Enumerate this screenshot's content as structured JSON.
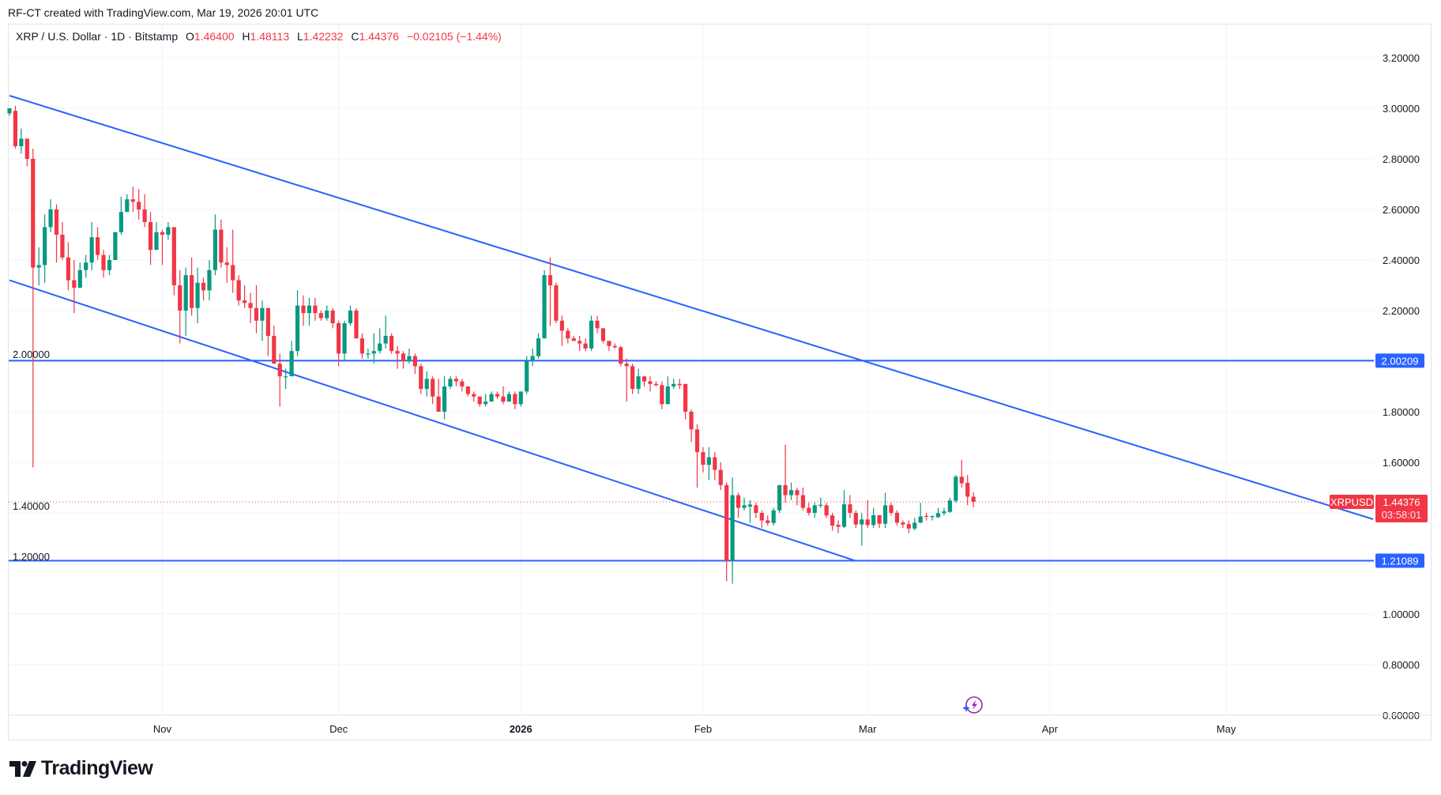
{
  "header": {
    "credit": "RF-CT created with TradingView.com, Mar 19, 2026 20:01 UTC"
  },
  "legend": {
    "symbol": "XRP / U.S. Dollar · 1D · Bitstamp",
    "o_label": "O",
    "o_value": "1.46400",
    "h_label": "H",
    "h_value": "1.48113",
    "l_label": "L",
    "l_value": "1.42232",
    "c_label": "C",
    "c_value": "1.44376",
    "change": "−0.02105 (−1.44%)"
  },
  "price_axis": {
    "ticks": [
      "3.20000",
      "3.00000",
      "2.80000",
      "2.60000",
      "2.40000",
      "2.20000",
      "2.00000",
      "1.80000",
      "1.60000",
      "1.40000",
      "1.20000",
      "1.00000",
      "0.80000",
      "0.60000"
    ],
    "level_labels": [
      "2.00209",
      "1.21089"
    ],
    "current_symbol": "XRPUSD",
    "current_price": "1.44376",
    "countdown": "03:58:01"
  },
  "time_axis": {
    "ticks": [
      {
        "label": "Nov",
        "date": "2025-11-01",
        "bold": false
      },
      {
        "label": "Dec",
        "date": "2025-12-01",
        "bold": false
      },
      {
        "label": "2026",
        "date": "2026-01-01",
        "bold": true
      },
      {
        "label": "Feb",
        "date": "2026-02-01",
        "bold": false
      },
      {
        "label": "Mar",
        "date": "2026-03-01",
        "bold": false
      },
      {
        "label": "Apr",
        "date": "2026-04-01",
        "bold": false
      },
      {
        "label": "May",
        "date": "2026-05-01",
        "bold": false
      }
    ]
  },
  "logo": {
    "text": "TradingView"
  },
  "colors": {
    "up": "#089981",
    "down": "#F23645",
    "drawing": "#2962FF",
    "grid": "#f0f3fa"
  },
  "chart_data": {
    "type": "candlestick",
    "interval": "1D",
    "ylim": [
      0.6,
      3.2
    ],
    "grid": true,
    "first_date": "2025-10-06",
    "last_date": "2026-03-19",
    "ohlc": [
      [
        2.98,
        3.0,
        2.97,
        3.0
      ],
      [
        2.99,
        3.01,
        2.84,
        2.85
      ],
      [
        2.85,
        2.92,
        2.82,
        2.88
      ],
      [
        2.88,
        2.88,
        2.77,
        2.8
      ],
      [
        2.8,
        2.84,
        1.58,
        2.37
      ],
      [
        2.37,
        2.45,
        2.3,
        2.38
      ],
      [
        2.38,
        2.58,
        2.31,
        2.53
      ],
      [
        2.53,
        2.64,
        2.51,
        2.6
      ],
      [
        2.6,
        2.62,
        2.39,
        2.5
      ],
      [
        2.5,
        2.55,
        2.4,
        2.41
      ],
      [
        2.41,
        2.47,
        2.28,
        2.32
      ],
      [
        2.32,
        2.4,
        2.19,
        2.29
      ],
      [
        2.29,
        2.39,
        2.29,
        2.36
      ],
      [
        2.36,
        2.42,
        2.33,
        2.39
      ],
      [
        2.39,
        2.55,
        2.36,
        2.49
      ],
      [
        2.49,
        2.53,
        2.4,
        2.42
      ],
      [
        2.42,
        2.44,
        2.33,
        2.36
      ],
      [
        2.36,
        2.42,
        2.34,
        2.4
      ],
      [
        2.4,
        2.51,
        2.4,
        2.51
      ],
      [
        2.51,
        2.65,
        2.5,
        2.59
      ],
      [
        2.59,
        2.66,
        2.59,
        2.64
      ],
      [
        2.64,
        2.69,
        2.59,
        2.63
      ],
      [
        2.63,
        2.68,
        2.56,
        2.6
      ],
      [
        2.6,
        2.66,
        2.53,
        2.55
      ],
      [
        2.55,
        2.59,
        2.38,
        2.44
      ],
      [
        2.44,
        2.55,
        2.44,
        2.51
      ],
      [
        2.51,
        2.52,
        2.38,
        2.5
      ],
      [
        2.5,
        2.55,
        2.48,
        2.53
      ],
      [
        2.53,
        2.53,
        2.26,
        2.3
      ],
      [
        2.3,
        2.36,
        2.07,
        2.2
      ],
      [
        2.2,
        2.37,
        2.1,
        2.34
      ],
      [
        2.34,
        2.41,
        2.18,
        2.21
      ],
      [
        2.21,
        2.37,
        2.15,
        2.31
      ],
      [
        2.31,
        2.33,
        2.24,
        2.28
      ],
      [
        2.28,
        2.4,
        2.24,
        2.36
      ],
      [
        2.36,
        2.58,
        2.34,
        2.52
      ],
      [
        2.52,
        2.56,
        2.37,
        2.39
      ],
      [
        2.39,
        2.45,
        2.31,
        2.38
      ],
      [
        2.38,
        2.52,
        2.27,
        2.32
      ],
      [
        2.32,
        2.34,
        2.22,
        2.24
      ],
      [
        2.24,
        2.3,
        2.21,
        2.23
      ],
      [
        2.23,
        2.27,
        2.15,
        2.21
      ],
      [
        2.21,
        2.3,
        2.11,
        2.16
      ],
      [
        2.16,
        2.24,
        2.08,
        2.21
      ],
      [
        2.21,
        2.21,
        2.02,
        2.1
      ],
      [
        2.1,
        2.14,
        1.99,
        1.99
      ],
      [
        1.99,
        2.03,
        1.82,
        1.94
      ],
      [
        1.94,
        1.97,
        1.89,
        1.94
      ],
      [
        1.94,
        2.08,
        1.94,
        2.04
      ],
      [
        2.04,
        2.28,
        2.02,
        2.22
      ],
      [
        2.22,
        2.26,
        2.14,
        2.19
      ],
      [
        2.19,
        2.25,
        2.14,
        2.22
      ],
      [
        2.22,
        2.25,
        2.16,
        2.19
      ],
      [
        2.19,
        2.2,
        2.16,
        2.17
      ],
      [
        2.17,
        2.22,
        2.16,
        2.2
      ],
      [
        2.2,
        2.21,
        2.13,
        2.15
      ],
      [
        2.15,
        2.16,
        1.98,
        2.03
      ],
      [
        2.03,
        2.16,
        2.0,
        2.15
      ],
      [
        2.15,
        2.22,
        2.14,
        2.2
      ],
      [
        2.2,
        2.21,
        2.09,
        2.09
      ],
      [
        2.09,
        2.11,
        2.01,
        2.03
      ],
      [
        2.03,
        2.05,
        2.01,
        2.03
      ],
      [
        2.03,
        2.11,
        1.99,
        2.04
      ],
      [
        2.04,
        2.13,
        2.03,
        2.07
      ],
      [
        2.07,
        2.18,
        2.05,
        2.1
      ],
      [
        2.1,
        2.11,
        2.03,
        2.04
      ],
      [
        2.04,
        2.06,
        1.97,
        2.03
      ],
      [
        2.03,
        2.04,
        1.97,
        2.0
      ],
      [
        2.0,
        2.05,
        1.99,
        2.02
      ],
      [
        2.02,
        2.03,
        1.95,
        1.98
      ],
      [
        1.98,
        1.99,
        1.87,
        1.89
      ],
      [
        1.89,
        1.96,
        1.86,
        1.93
      ],
      [
        1.93,
        1.94,
        1.83,
        1.86
      ],
      [
        1.86,
        1.93,
        1.8,
        1.8
      ],
      [
        1.8,
        1.94,
        1.77,
        1.9
      ],
      [
        1.9,
        1.94,
        1.89,
        1.93
      ],
      [
        1.93,
        1.94,
        1.9,
        1.92
      ],
      [
        1.92,
        1.93,
        1.88,
        1.9
      ],
      [
        1.9,
        1.9,
        1.86,
        1.87
      ],
      [
        1.87,
        1.88,
        1.84,
        1.86
      ],
      [
        1.86,
        1.86,
        1.82,
        1.83
      ],
      [
        1.83,
        1.87,
        1.82,
        1.84
      ],
      [
        1.84,
        1.88,
        1.84,
        1.87
      ],
      [
        1.87,
        1.88,
        1.85,
        1.86
      ],
      [
        1.86,
        1.9,
        1.83,
        1.84
      ],
      [
        1.84,
        1.88,
        1.84,
        1.87
      ],
      [
        1.87,
        1.88,
        1.81,
        1.83
      ],
      [
        1.83,
        1.88,
        1.82,
        1.88
      ],
      [
        1.88,
        2.02,
        1.87,
        2.0
      ],
      [
        2.0,
        2.05,
        1.98,
        2.02
      ],
      [
        2.02,
        2.11,
        2.01,
        2.09
      ],
      [
        2.09,
        2.36,
        2.09,
        2.34
      ],
      [
        2.34,
        2.41,
        2.14,
        2.3
      ],
      [
        2.3,
        2.31,
        2.15,
        2.16
      ],
      [
        2.16,
        2.18,
        2.06,
        2.12
      ],
      [
        2.12,
        2.13,
        2.07,
        2.09
      ],
      [
        2.09,
        2.1,
        2.08,
        2.08
      ],
      [
        2.08,
        2.1,
        2.04,
        2.07
      ],
      [
        2.07,
        2.09,
        2.04,
        2.05
      ],
      [
        2.05,
        2.18,
        2.04,
        2.16
      ],
      [
        2.16,
        2.18,
        2.11,
        2.13
      ],
      [
        2.13,
        2.13,
        2.07,
        2.08
      ],
      [
        2.08,
        2.08,
        2.04,
        2.06
      ],
      [
        2.06,
        2.07,
        2.05,
        2.055
      ],
      [
        2.055,
        2.06,
        1.98,
        1.99
      ],
      [
        1.99,
        2.01,
        1.84,
        1.98
      ],
      [
        1.98,
        1.99,
        1.87,
        1.89
      ],
      [
        1.89,
        1.97,
        1.87,
        1.94
      ],
      [
        1.94,
        1.94,
        1.9,
        1.92
      ],
      [
        1.92,
        1.94,
        1.88,
        1.91
      ],
      [
        1.91,
        1.92,
        1.9,
        1.905
      ],
      [
        1.905,
        1.92,
        1.81,
        1.83
      ],
      [
        1.83,
        1.94,
        1.83,
        1.9
      ],
      [
        1.9,
        1.93,
        1.89,
        1.91
      ],
      [
        1.91,
        1.93,
        1.89,
        1.905
      ],
      [
        1.91,
        1.91,
        1.77,
        1.8
      ],
      [
        1.8,
        1.81,
        1.68,
        1.73
      ],
      [
        1.73,
        1.75,
        1.5,
        1.64
      ],
      [
        1.64,
        1.66,
        1.56,
        1.59
      ],
      [
        1.59,
        1.66,
        1.53,
        1.62
      ],
      [
        1.62,
        1.64,
        1.53,
        1.57
      ],
      [
        1.57,
        1.6,
        1.49,
        1.51
      ],
      [
        1.51,
        1.52,
        1.13,
        1.21
      ],
      [
        1.21,
        1.54,
        1.12,
        1.47
      ],
      [
        1.47,
        1.48,
        1.38,
        1.42
      ],
      [
        1.42,
        1.46,
        1.41,
        1.43
      ],
      [
        1.425,
        1.45,
        1.36,
        1.433
      ],
      [
        1.43,
        1.44,
        1.38,
        1.4
      ],
      [
        1.4,
        1.41,
        1.34,
        1.37
      ],
      [
        1.37,
        1.39,
        1.35,
        1.36
      ],
      [
        1.36,
        1.42,
        1.35,
        1.41
      ],
      [
        1.41,
        1.51,
        1.4,
        1.51
      ],
      [
        1.51,
        1.67,
        1.44,
        1.47
      ],
      [
        1.47,
        1.52,
        1.45,
        1.49
      ],
      [
        1.49,
        1.5,
        1.43,
        1.47
      ],
      [
        1.47,
        1.5,
        1.41,
        1.42
      ],
      [
        1.42,
        1.44,
        1.39,
        1.4
      ],
      [
        1.4,
        1.44,
        1.38,
        1.43
      ],
      [
        1.428,
        1.46,
        1.42,
        1.432
      ],
      [
        1.43,
        1.44,
        1.38,
        1.39
      ],
      [
        1.39,
        1.4,
        1.33,
        1.35
      ],
      [
        1.353,
        1.37,
        1.32,
        1.345
      ],
      [
        1.345,
        1.49,
        1.34,
        1.434
      ],
      [
        1.434,
        1.47,
        1.38,
        1.4
      ],
      [
        1.4,
        1.41,
        1.34,
        1.354
      ],
      [
        1.354,
        1.4,
        1.27,
        1.374
      ],
      [
        1.374,
        1.45,
        1.34,
        1.352
      ],
      [
        1.352,
        1.42,
        1.34,
        1.391
      ],
      [
        1.391,
        1.39,
        1.34,
        1.357
      ],
      [
        1.357,
        1.48,
        1.34,
        1.43
      ],
      [
        1.43,
        1.44,
        1.39,
        1.4
      ],
      [
        1.4,
        1.41,
        1.35,
        1.361
      ],
      [
        1.362,
        1.37,
        1.34,
        1.354
      ],
      [
        1.356,
        1.37,
        1.32,
        1.338
      ],
      [
        1.338,
        1.38,
        1.33,
        1.361
      ],
      [
        1.361,
        1.44,
        1.36,
        1.386
      ],
      [
        1.388,
        1.4,
        1.37,
        1.385
      ],
      [
        1.385,
        1.39,
        1.37,
        1.387
      ],
      [
        1.383,
        1.42,
        1.38,
        1.399
      ],
      [
        1.399,
        1.42,
        1.39,
        1.406
      ],
      [
        1.404,
        1.46,
        1.4,
        1.449
      ],
      [
        1.448,
        1.55,
        1.44,
        1.543
      ],
      [
        1.543,
        1.61,
        1.5,
        1.517
      ],
      [
        1.519,
        1.55,
        1.43,
        1.464
      ],
      [
        1.464,
        1.48113,
        1.42232,
        1.44376
      ]
    ],
    "horizontal_levels": [
      2.00209,
      1.21089
    ],
    "trend_lines": [
      [
        {
          "date": "2025-10-06",
          "price": 3.05
        },
        {
          "date": "2026-05-26",
          "price": 1.375
        }
      ],
      [
        {
          "date": "2025-10-06",
          "price": 2.32
        },
        {
          "date": "2026-02-27",
          "price": 1.21
        }
      ]
    ],
    "last_price": 1.44376
  }
}
